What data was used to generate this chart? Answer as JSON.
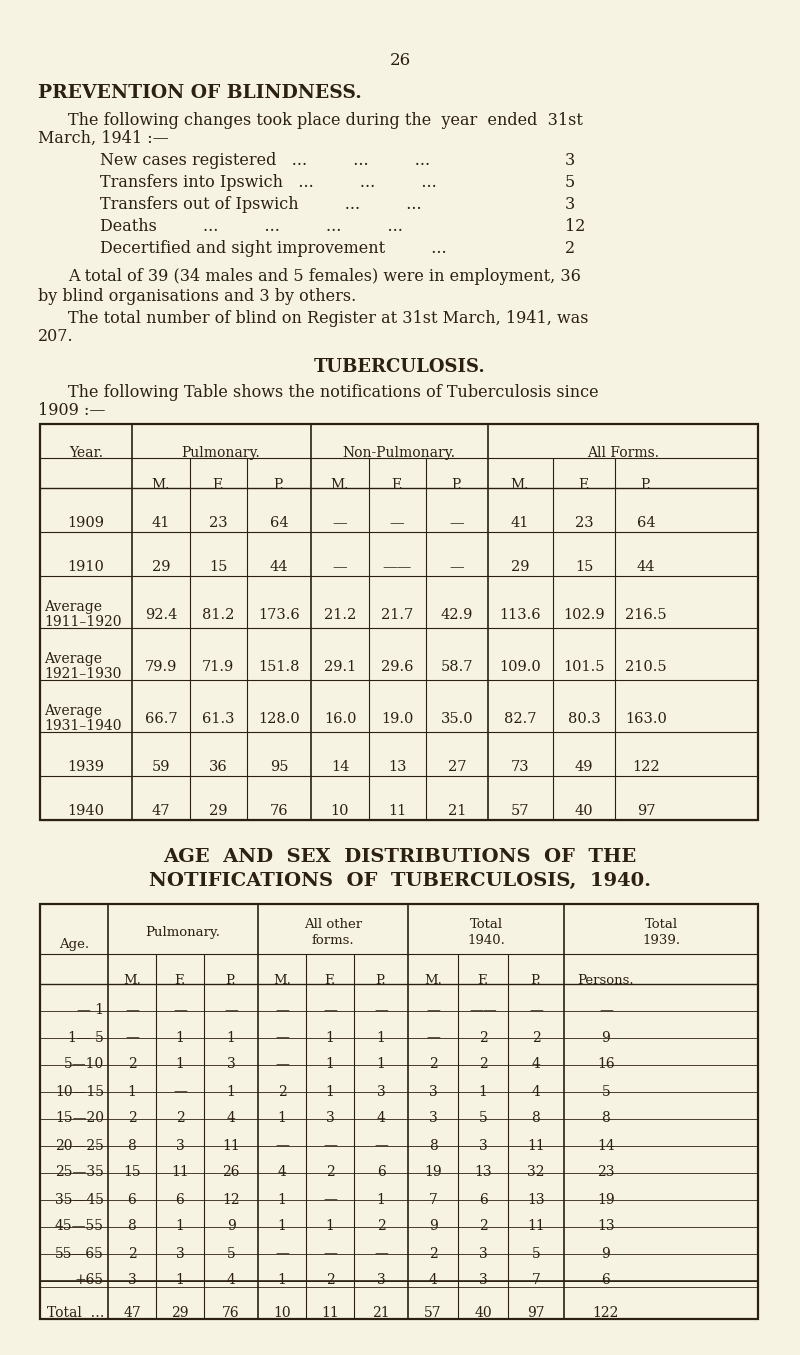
{
  "bg_color": "#f7f3e3",
  "text_color": "#2c2010",
  "page_number": "26",
  "section1_title": "PREVENTION OF BLINDNESS.",
  "section1_para1a": "The following changes took place during the  year  ended  31st",
  "section1_para1b": "March, 1941 :—",
  "section1_items": [
    [
      "New cases registered   ...         ...         ...   ",
      "3"
    ],
    [
      "Transfers into Ipswich   ...         ...         ...   ",
      "5"
    ],
    [
      "Transfers out of Ipswich         ...         ...   ",
      "3"
    ],
    [
      "Deaths         ...         ...         ...         ...   ",
      "12"
    ],
    [
      "Decertified and sight improvement         ...   ",
      "2"
    ]
  ],
  "section1_para2a": "A total of 39 (34 males and 5 females) were in employment, 36",
  "section1_para2b": "by blind organisations and 3 by others.",
  "section1_para3a": "The total number of blind on Register at 31st March, 1941, was",
  "section1_para3b": "207.",
  "section2_title": "TUBERCULOSIS.",
  "section2_para1a": "The following Table shows the notifications of Tuberculosis since",
  "section2_para1b": "1909 :—",
  "tb1_year_header": "Year.",
  "tb1_group_headers": [
    "Pulmonary.",
    "Non-Pulmonary.",
    "All Forms."
  ],
  "tb1_sub_headers": [
    "M.",
    "F.",
    "P.",
    "M.",
    "F.",
    "P.",
    "M.",
    "F.",
    "P."
  ],
  "tb1_rows": [
    [
      "1909",
      "41",
      "23",
      "64",
      "—",
      "—",
      "—",
      "41",
      "23",
      "64"
    ],
    [
      "1910",
      "29",
      "15",
      "44",
      "—",
      "——",
      "—",
      "29",
      "15",
      "44"
    ],
    [
      "Average\n1911–1920",
      "92.4",
      "81.2",
      "173.6",
      "21.2",
      "21.7",
      "42.9",
      "113.6",
      "102.9",
      "216.5"
    ],
    [
      "Average\n1921–1930",
      "79.9",
      "71.9",
      "151.8",
      "29.1",
      "29.6",
      "58.7",
      "109.0",
      "101.5",
      "210.5"
    ],
    [
      "Average\n1931–1940",
      "66.7",
      "61.3",
      "128.0",
      "16.0",
      "19.0",
      "35.0",
      "82.7",
      "80.3",
      "163.0"
    ],
    [
      "1939",
      "59",
      "36",
      "95",
      "14",
      "13",
      "27",
      "73",
      "49",
      "122"
    ],
    [
      "1940",
      "47",
      "29",
      "76",
      "10",
      "11",
      "21",
      "57",
      "40",
      "97"
    ]
  ],
  "section3_title_a": "AGE  AND  SEX  DISTRIBUTIONS  OF  THE",
  "section3_title_b": "NOTIFICATIONS  OF  TUBERCULOSIS,  1940.",
  "tb2_age_header": "Age.",
  "tb2_group_headers": [
    "Pulmonary.",
    "All other\nforms.",
    "Total\n1940.",
    "Total\n1939."
  ],
  "tb2_sub_headers": [
    "M.",
    "F.",
    "P.",
    "M.",
    "F.",
    "P.",
    "M.",
    "F.",
    "P.",
    "Persons."
  ],
  "tb2_rows": [
    [
      "— 1",
      "—",
      "—",
      "—",
      "—",
      "—",
      "—",
      "—",
      "——",
      "—",
      "—"
    ],
    [
      "1— 5",
      "—",
      "1",
      "1",
      "—",
      "1",
      "1",
      "—",
      "2",
      "2",
      "9"
    ],
    [
      "5—10",
      "2",
      "1",
      "3",
      "—",
      "1",
      "1",
      "2",
      "2",
      "4",
      "16"
    ],
    [
      "10—15",
      "1",
      "—",
      "1",
      "2",
      "1",
      "3",
      "3",
      "1",
      "4",
      "5"
    ],
    [
      "15—20",
      "2",
      "2",
      "4",
      "1",
      "3",
      "4",
      "3",
      "5",
      "8",
      "8"
    ],
    [
      "20—25",
      "8",
      "3",
      "11",
      "—",
      "—",
      "—",
      "8",
      "3",
      "11",
      "14"
    ],
    [
      "25—35",
      "15",
      "11",
      "26",
      "4",
      "2",
      "6",
      "19",
      "13",
      "32",
      "23"
    ],
    [
      "35—45",
      "6",
      "6",
      "12",
      "1",
      "—",
      "1",
      "7",
      "6",
      "13",
      "19"
    ],
    [
      "45—55",
      "8",
      "1",
      "9",
      "1",
      "1",
      "2",
      "9",
      "2",
      "11",
      "13"
    ],
    [
      "55—65",
      "2",
      "3",
      "5",
      "—",
      "—",
      "—",
      "2",
      "3",
      "5",
      "9"
    ],
    [
      "+65",
      "3",
      "1",
      "4",
      "1",
      "2",
      "3",
      "4",
      "3",
      "7",
      "6"
    ]
  ],
  "tb2_total": [
    "Total  …",
    "47",
    "29",
    "76",
    "10",
    "11",
    "21",
    "57",
    "40",
    "97",
    "122"
  ]
}
